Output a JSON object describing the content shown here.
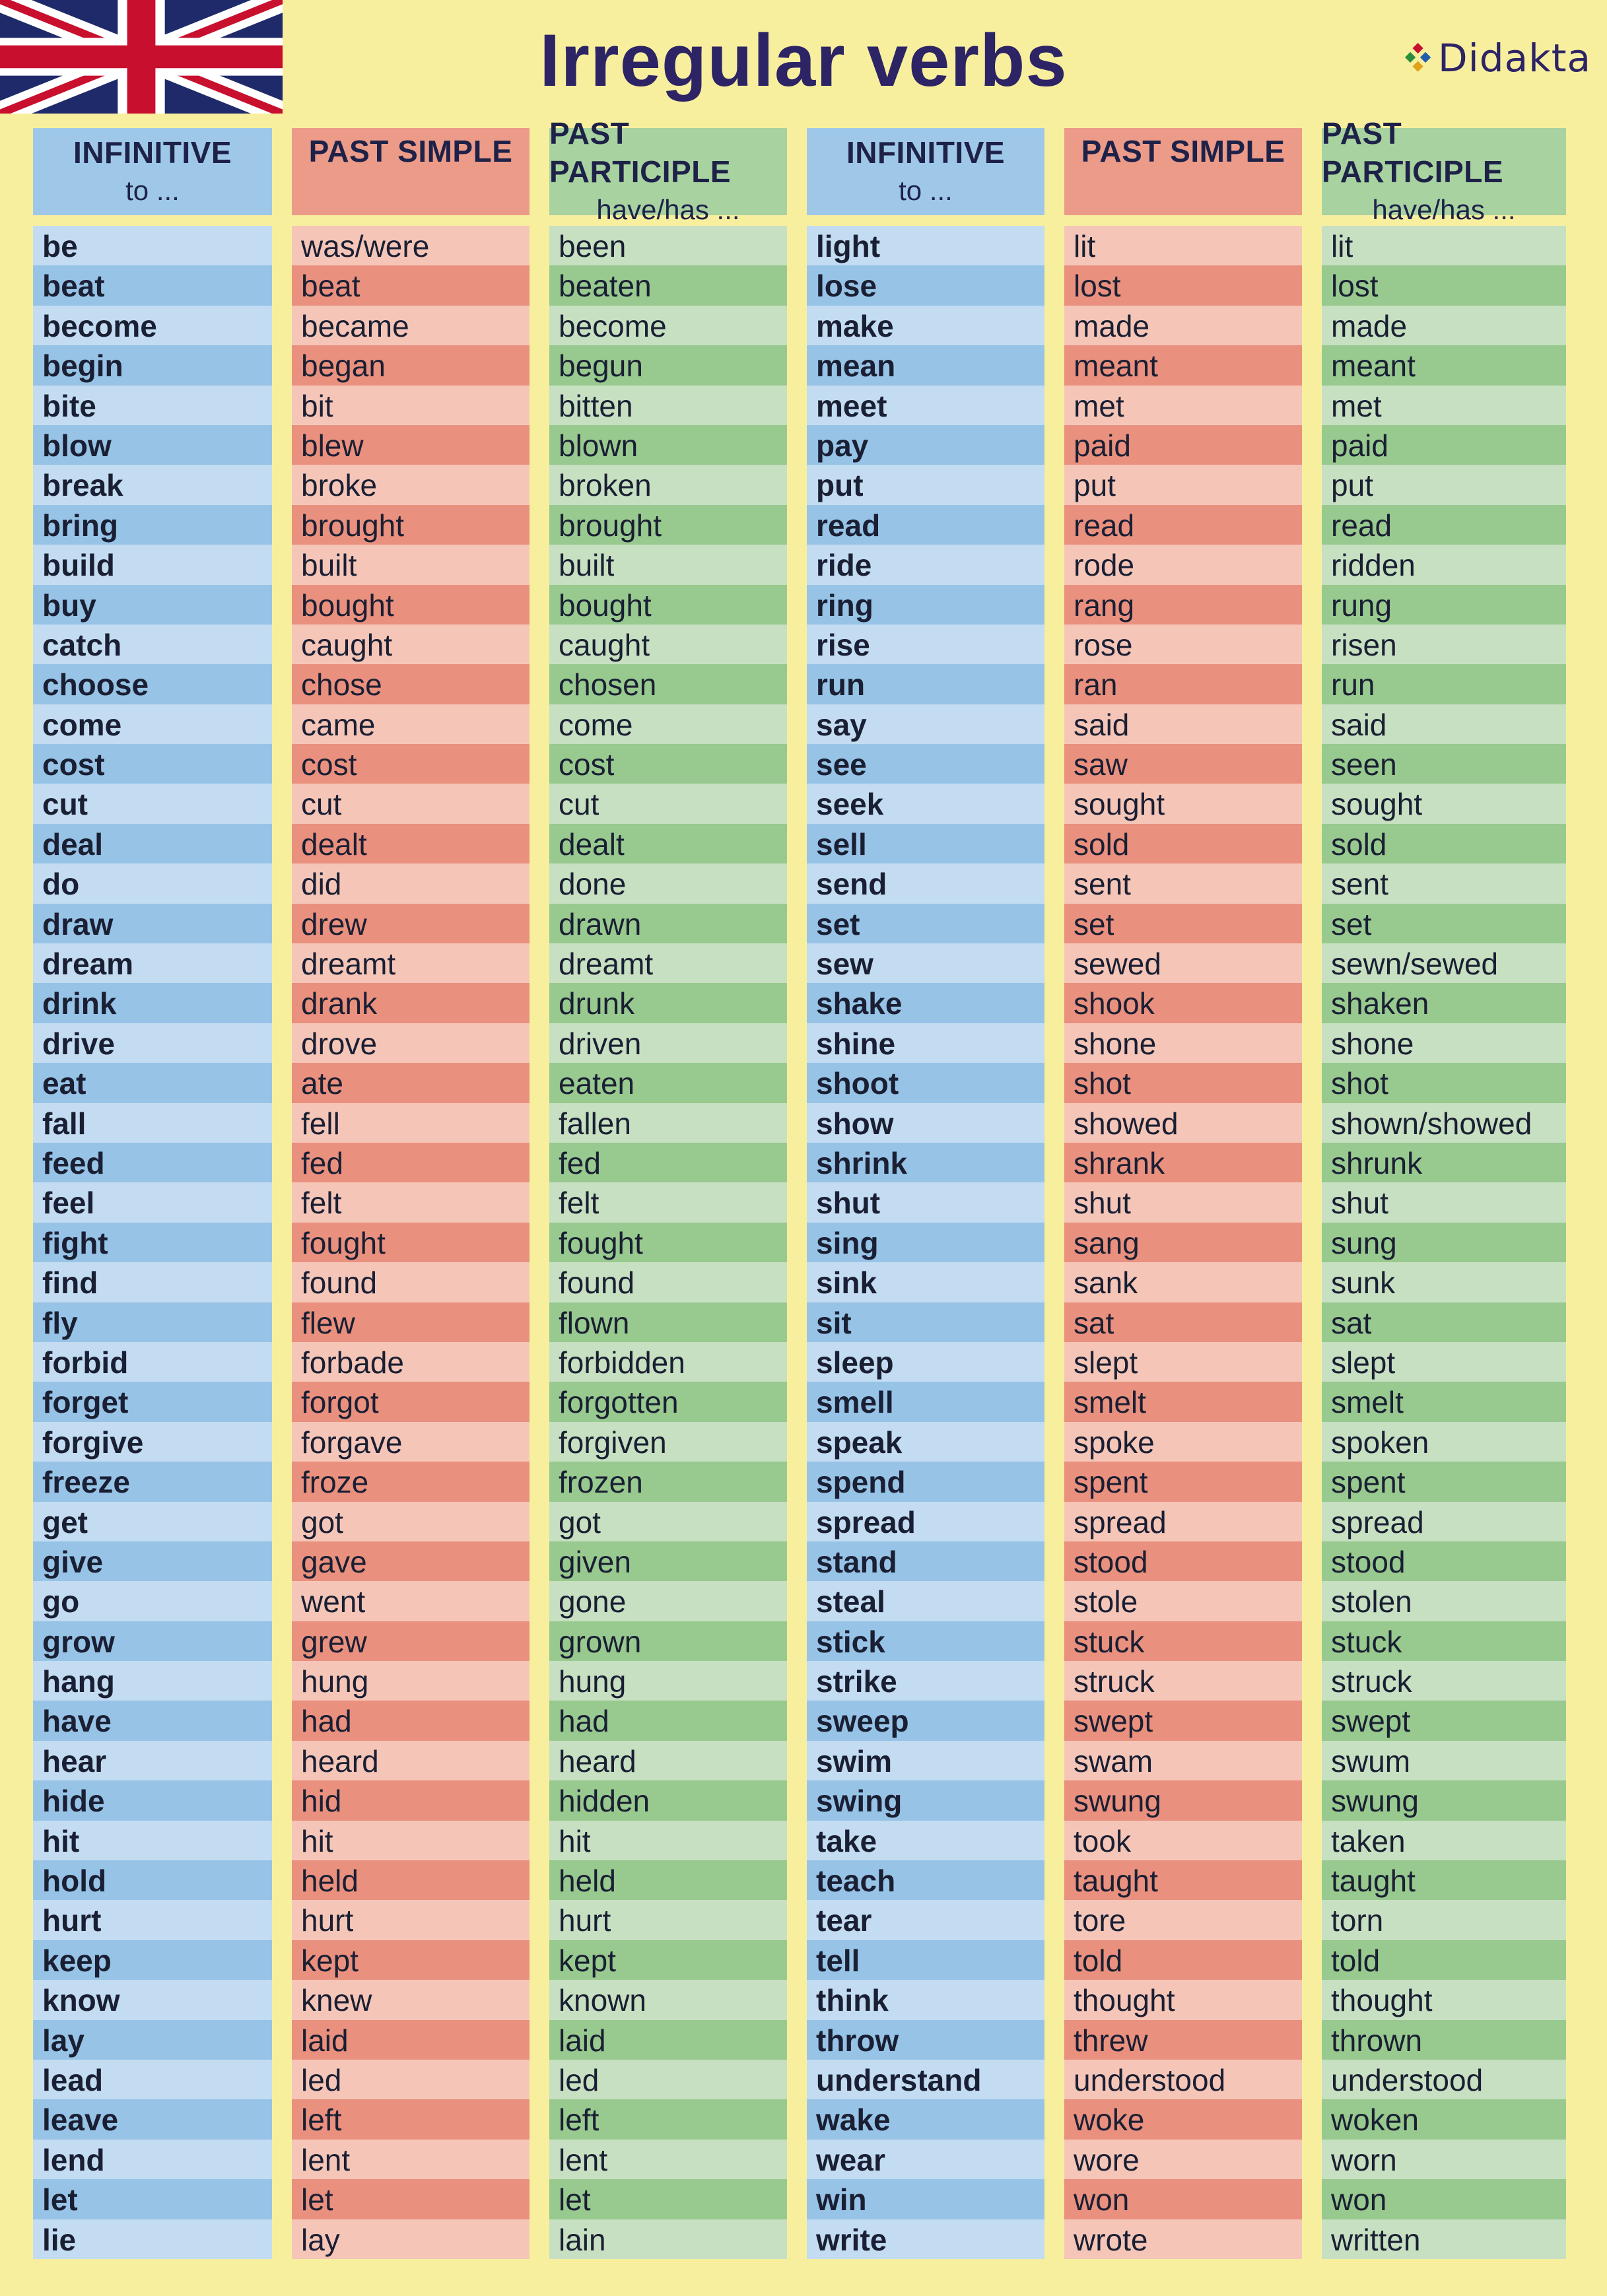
{
  "title": "Irregular verbs",
  "brand": "Didakta",
  "headers": {
    "infinitive": "INFINITIVE",
    "infinitive_sub": "to ...",
    "past_simple": "PAST SIMPLE",
    "past_participle": "PAST PARTICIPLE",
    "past_participle_sub": "have/has ..."
  },
  "table1": {
    "infinitive": [
      "be",
      "beat",
      "become",
      "begin",
      "bite",
      "blow",
      "break",
      "bring",
      "build",
      "buy",
      "catch",
      "choose",
      "come",
      "cost",
      "cut",
      "deal",
      "do",
      "draw",
      "dream",
      "drink",
      "drive",
      "eat",
      "fall",
      "feed",
      "feel",
      "fight",
      "find",
      "fly",
      "forbid",
      "forget",
      "forgive",
      "freeze",
      "get",
      "give",
      "go",
      "grow",
      "hang",
      "have",
      "hear",
      "hide",
      "hit",
      "hold",
      "hurt",
      "keep",
      "know",
      "lay",
      "lead",
      "leave",
      "lend",
      "let",
      "lie"
    ],
    "past_simple": [
      "was/were",
      "beat",
      "became",
      "began",
      "bit",
      "blew",
      "broke",
      "brought",
      "built",
      "bought",
      "caught",
      "chose",
      "came",
      "cost",
      "cut",
      "dealt",
      "did",
      "drew",
      "dreamt",
      "drank",
      "drove",
      "ate",
      "fell",
      "fed",
      "felt",
      "fought",
      "found",
      "flew",
      "forbade",
      "forgot",
      "forgave",
      "froze",
      "got",
      "gave",
      "went",
      "grew",
      "hung",
      "had",
      "heard",
      "hid",
      "hit",
      "held",
      "hurt",
      "kept",
      "knew",
      "laid",
      "led",
      "left",
      "lent",
      "let",
      "lay"
    ],
    "past_participle": [
      "been",
      "beaten",
      "become",
      "begun",
      "bitten",
      "blown",
      "broken",
      "brought",
      "built",
      "bought",
      "caught",
      "chosen",
      "come",
      "cost",
      "cut",
      "dealt",
      "done",
      "drawn",
      "dreamt",
      "drunk",
      "driven",
      "eaten",
      "fallen",
      "fed",
      "felt",
      "fought",
      "found",
      "flown",
      "forbidden",
      "forgotten",
      "forgiven",
      "frozen",
      "got",
      "given",
      "gone",
      "grown",
      "hung",
      "had",
      "heard",
      "hidden",
      "hit",
      "held",
      "hurt",
      "kept",
      "known",
      "laid",
      "led",
      "left",
      "lent",
      "let",
      "lain"
    ]
  },
  "table2": {
    "infinitive": [
      "light",
      "lose",
      "make",
      "mean",
      "meet",
      "pay",
      "put",
      "read",
      "ride",
      "ring",
      "rise",
      "run",
      "say",
      "see",
      "seek",
      "sell",
      "send",
      "set",
      "sew",
      "shake",
      "shine",
      "shoot",
      "show",
      "shrink",
      "shut",
      "sing",
      "sink",
      "sit",
      "sleep",
      "smell",
      "speak",
      "spend",
      "spread",
      "stand",
      "steal",
      "stick",
      "strike",
      "sweep",
      "swim",
      "swing",
      "take",
      "teach",
      "tear",
      "tell",
      "think",
      "throw",
      "understand",
      "wake",
      "wear",
      "win",
      "write"
    ],
    "past_simple": [
      "lit",
      "lost",
      "made",
      "meant",
      "met",
      "paid",
      "put",
      "read",
      "rode",
      "rang",
      "rose",
      "ran",
      "said",
      "saw",
      "sought",
      "sold",
      "sent",
      "set",
      "sewed",
      "shook",
      "shone",
      "shot",
      "showed",
      "shrank",
      "shut",
      "sang",
      "sank",
      "sat",
      "slept",
      "smelt",
      "spoke",
      "spent",
      "spread",
      "stood",
      "stole",
      "stuck",
      "struck",
      "swept",
      "swam",
      "swung",
      "took",
      "taught",
      "tore",
      "told",
      "thought",
      "threw",
      "understood",
      "woke",
      "wore",
      "won",
      "wrote"
    ],
    "past_participle": [
      "lit",
      "lost",
      "made",
      "meant",
      "met",
      "paid",
      "put",
      "read",
      "ridden",
      "rung",
      "risen",
      "run",
      "said",
      "seen",
      "sought",
      "sold",
      "sent",
      "set",
      "sewn/sewed",
      "shaken",
      "shone",
      "shot",
      "shown/showed",
      "shrunk",
      "shut",
      "sung",
      "sunk",
      "sat",
      "slept",
      "smelt",
      "spoken",
      "spent",
      "spread",
      "stood",
      "stolen",
      "stuck",
      "struck",
      "swept",
      "swum",
      "swung",
      "taken",
      "taught",
      "torn",
      "told",
      "thought",
      "thrown",
      "understood",
      "woken",
      "worn",
      "won",
      "written"
    ]
  }
}
